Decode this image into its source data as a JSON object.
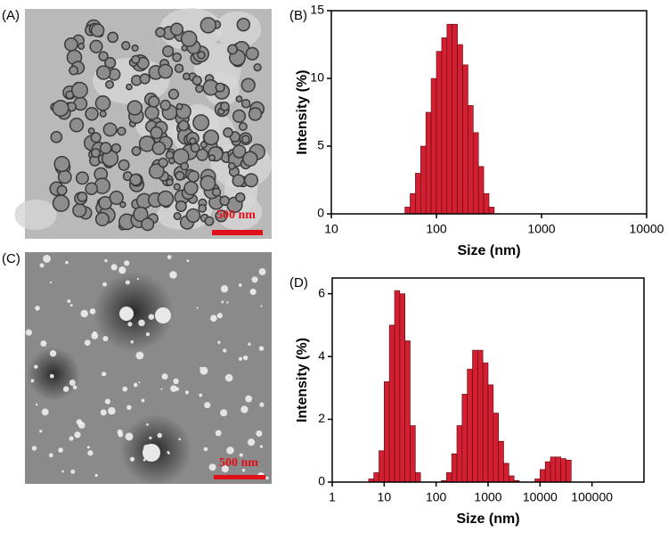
{
  "images": [
    {
      "panel": "(A)",
      "scale_bar": "500 nm"
    },
    {
      "panel": "(C)",
      "scale_bar": "500 nm"
    }
  ],
  "chart_data": [
    {
      "type": "histogram",
      "panel": "(B)",
      "xlabel": "Size (nm)",
      "ylabel": "Intensity (%)",
      "log_x": true,
      "color": "#d21f32",
      "bins": [
        50.1,
        56.2,
        63.1,
        70.8,
        79.4,
        89.1,
        100,
        112.2,
        125.9,
        141.3,
        158.5,
        177.8,
        199.5,
        223.9,
        251.2,
        281.8,
        316.2,
        354.8
      ],
      "values": [
        0.5,
        1.5,
        3,
        5,
        7.5,
        10,
        12,
        13,
        14,
        14,
        12.5,
        11,
        8,
        6,
        3.5,
        1.5,
        0.5
      ],
      "xlim": [
        10,
        10000
      ],
      "xticks": [
        10,
        100,
        1000,
        10000
      ],
      "ylim": [
        0,
        15
      ],
      "yticks": [
        0,
        5,
        10,
        15
      ]
    },
    {
      "type": "histogram",
      "panel": "(D)",
      "xlabel": "Size (nm)",
      "ylabel": "Intensity (%)",
      "log_x": true,
      "color": "#d21f32",
      "bins": [
        3.98,
        5.01,
        6.31,
        7.94,
        10,
        12.59,
        15.85,
        19.95,
        25.12,
        31.62,
        39.81,
        50.12,
        63.1,
        79.43,
        100,
        125.9,
        158.5,
        199.5,
        251.2,
        316.2,
        398.1,
        501.2,
        631,
        794.3,
        1000,
        1259,
        1585,
        1995,
        2512,
        3162,
        3981,
        5012,
        6310,
        7943,
        10000,
        12589,
        15849,
        19953,
        25119,
        31623,
        39811
      ],
      "values": [
        0,
        0.1,
        0.3,
        1.0,
        3.2,
        5.0,
        6.1,
        6.0,
        4.5,
        1.8,
        0.3,
        0,
        0,
        0,
        0,
        0.05,
        0.3,
        0.9,
        1.8,
        2.8,
        3.6,
        4.2,
        4.2,
        3.8,
        3.1,
        2.2,
        1.3,
        0.6,
        0.2,
        0.05,
        0,
        0,
        0,
        0.1,
        0.4,
        0.65,
        0.8,
        0.8,
        0.75,
        0.7
      ],
      "xlim": [
        1,
        1000000
      ],
      "xticks": [
        1,
        10,
        100,
        1000,
        10000,
        100000
      ],
      "ylim": [
        0,
        6.5
      ],
      "yticks": [
        0,
        2,
        4,
        6
      ]
    }
  ]
}
